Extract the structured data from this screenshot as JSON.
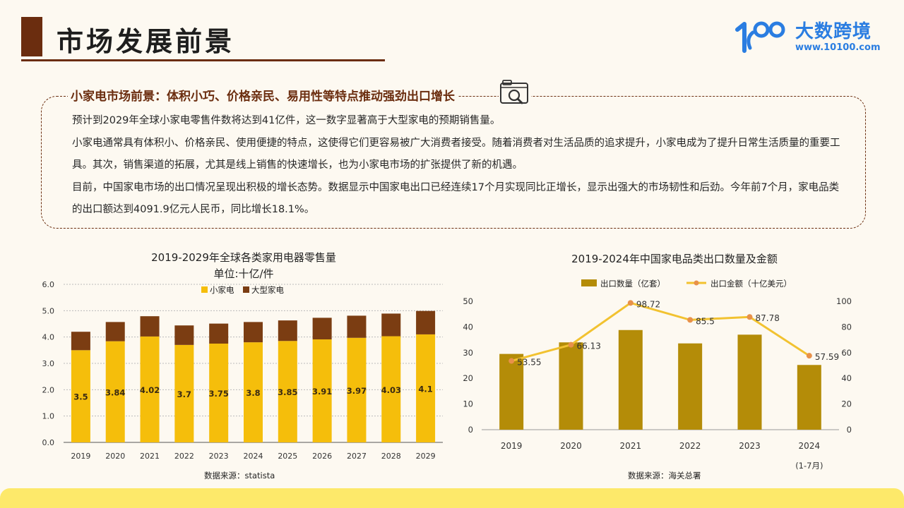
{
  "header": {
    "title": "市场发展前景",
    "logo_name": "大数跨境",
    "logo_url": "www.10100.com",
    "logo_mark_text": "100"
  },
  "section": {
    "title": "小家电市场前景：体积小巧、价格亲民、易用性等特点推动强劲出口增长",
    "icon": "magnifier-card-icon",
    "paragraphs": [
      "预计到2029年全球小家电零售件数将达到41亿件，这一数字显著高于大型家电的预期销售量。",
      "小家电通常具有体积小、价格亲民、使用便捷的特点，这使得它们更容易被广大消费者接受。随着消费者对生活品质的追求提升，小家电成为了提升日常生活质量的重要工具。其次，销售渠道的拓展，尤其是线上销售的快速增长，也为小家电市场的扩张提供了新的机遇。",
      "目前，中国家电市场的出口情况呈现出积极的增长态势。数据显示中国家电出口已经连续17个月实现同比正增长，显示出强大的市场韧性和后劲。今年前7个月，家电品类的出口额达到4091.9亿元人民币，同比增长18.1%。"
    ]
  },
  "colors": {
    "brown": "#6b2d0f",
    "bar_brown": "#7b3d12",
    "bar_yellow": "#f5be0b",
    "olive": "#b48c08",
    "line_yellow": "#f2c230",
    "dot_orange": "#e8914a",
    "logo_blue": "#2a7de1",
    "footer": "#fde96a"
  },
  "chart_data": [
    {
      "type": "bar",
      "stacked": true,
      "title": "2019-2029年全球各类家用电器零售量",
      "subtitle": "单位:十亿/件",
      "source": "数据来源：statista",
      "categories": [
        "2019",
        "2020",
        "2021",
        "2022",
        "2023",
        "2024",
        "2025",
        "2026",
        "2027",
        "2028",
        "2029"
      ],
      "series": [
        {
          "name": "小家电",
          "values": [
            3.5,
            3.84,
            4.02,
            3.7,
            3.75,
            3.8,
            3.85,
            3.91,
            3.97,
            4.03,
            4.1
          ],
          "labels": [
            "3.5",
            "3.84",
            "4.02",
            "3.7",
            "3.75",
            "3.8",
            "3.85",
            "3.91",
            "3.97",
            "4.03",
            "4.1"
          ]
        },
        {
          "name": "大型家电",
          "values": [
            0.7,
            0.73,
            0.77,
            0.74,
            0.76,
            0.77,
            0.78,
            0.82,
            0.84,
            0.86,
            0.89
          ]
        }
      ],
      "ylim": [
        0,
        6
      ],
      "yticks": [
        "0.0",
        "1.0",
        "2.0",
        "3.0",
        "4.0",
        "5.0",
        "6.0"
      ],
      "legend": "top-center",
      "grid": true
    },
    {
      "type": "bar+line",
      "title": "2019-2024年中国家电品类出口数量及金额",
      "source": "数据来源：海关总署",
      "categories": [
        "2019",
        "2020",
        "2021",
        "2022",
        "2023",
        "2024"
      ],
      "category_sublabels": [
        "",
        "",
        "",
        "",
        "",
        "(1-7月)"
      ],
      "series": [
        {
          "name": "出口数量（亿套）",
          "type": "bar",
          "axis": "left",
          "values": [
            29.5,
            34,
            38.8,
            33.6,
            37,
            25.2
          ]
        },
        {
          "name": "出口金额（十亿美元）",
          "type": "line",
          "axis": "right",
          "values": [
            53.55,
            66.13,
            98.72,
            85.5,
            87.78,
            57.59
          ],
          "labels": [
            "53.55",
            "66.13",
            "98.72",
            "85.5",
            "87.78",
            "57.59"
          ]
        }
      ],
      "ylim_left": [
        0,
        50
      ],
      "yticks_left": [
        "0",
        "10",
        "20",
        "30",
        "40",
        "50"
      ],
      "ylim_right": [
        0,
        100
      ],
      "yticks_right": [
        "0",
        "20",
        "40",
        "60",
        "80",
        "100"
      ],
      "legend": "top-center",
      "grid": false
    }
  ]
}
